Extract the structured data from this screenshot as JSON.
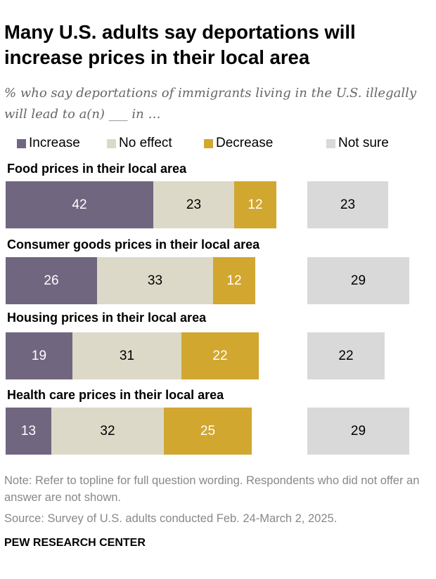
{
  "title": "Many U.S. adults say deportations will increase prices in their local area",
  "subtitle": "% who say deportations of immigrants living in the U.S. illegally will lead to a(n) ___ in …",
  "note": "Note: Refer to topline for full question wording. Respondents who did not offer an answer are not shown.",
  "source": "Source: Survey of U.S. adults conducted Feb. 24-March 2, 2025.",
  "brand": "PEW RESEARCH CENTER",
  "chart_data": {
    "type": "bar",
    "orientation": "horizontal-stacked",
    "categories": [
      "Food prices in their local area",
      "Consumer goods prices in their local area",
      "Housing prices in their local area",
      "Health care prices in their local area"
    ],
    "series": [
      {
        "name": "Increase",
        "color": "#716680",
        "values": [
          42,
          26,
          19,
          13
        ]
      },
      {
        "name": "No effect",
        "color": "#dcd9c8",
        "values": [
          23,
          33,
          31,
          32
        ]
      },
      {
        "name": "Decrease",
        "color": "#d1a730",
        "values": [
          12,
          12,
          22,
          25
        ]
      },
      {
        "name": "Not sure",
        "color": "#d9d9d9",
        "values": [
          23,
          29,
          22,
          29
        ]
      }
    ],
    "legend": "top"
  }
}
